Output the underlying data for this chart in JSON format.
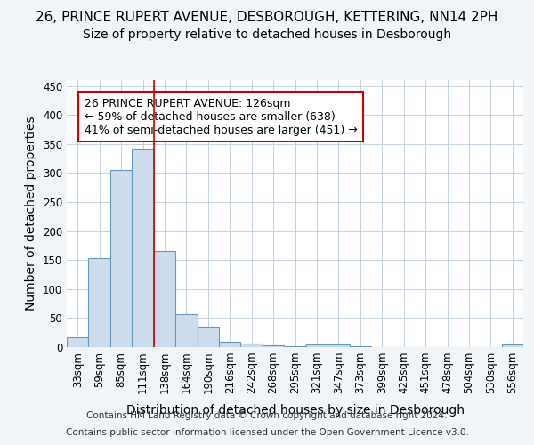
{
  "title1": "26, PRINCE RUPERT AVENUE, DESBOROUGH, KETTERING, NN14 2PH",
  "title2": "Size of property relative to detached houses in Desborough",
  "xlabel": "Distribution of detached houses by size in Desborough",
  "ylabel": "Number of detached properties",
  "bar_color": "#ccdcec",
  "bar_edgecolor": "#6699bb",
  "bar_linewidth": 0.8,
  "categories": [
    "33sqm",
    "59sqm",
    "85sqm",
    "111sqm",
    "138sqm",
    "164sqm",
    "190sqm",
    "216sqm",
    "242sqm",
    "268sqm",
    "295sqm",
    "321sqm",
    "347sqm",
    "373sqm",
    "399sqm",
    "425sqm",
    "451sqm",
    "478sqm",
    "504sqm",
    "530sqm",
    "556sqm"
  ],
  "values": [
    17,
    153,
    305,
    342,
    165,
    57,
    35,
    9,
    6,
    3,
    1,
    5,
    5,
    1,
    0,
    0,
    0,
    0,
    0,
    0,
    4
  ],
  "ylim": [
    0,
    460
  ],
  "yticks": [
    0,
    50,
    100,
    150,
    200,
    250,
    300,
    350,
    400,
    450
  ],
  "property_line_x": 3.5,
  "property_line_color": "#cc0000",
  "annotation_line1": "26 PRINCE RUPERT AVENUE: 126sqm",
  "annotation_line2": "← 59% of detached houses are smaller (638)",
  "annotation_line3": "41% of semi-detached houses are larger (451) →",
  "footnote1": "Contains HM Land Registry data © Crown copyright and database right 2024.",
  "footnote2": "Contains public sector information licensed under the Open Government Licence v3.0.",
  "background_color": "#f2f5f8",
  "plot_background_color": "#ffffff",
  "grid_color": "#bbccdd",
  "title_fontsize": 11,
  "subtitle_fontsize": 10,
  "axis_label_fontsize": 10,
  "tick_fontsize": 8.5,
  "annotation_fontsize": 9,
  "footnote_fontsize": 7.5
}
